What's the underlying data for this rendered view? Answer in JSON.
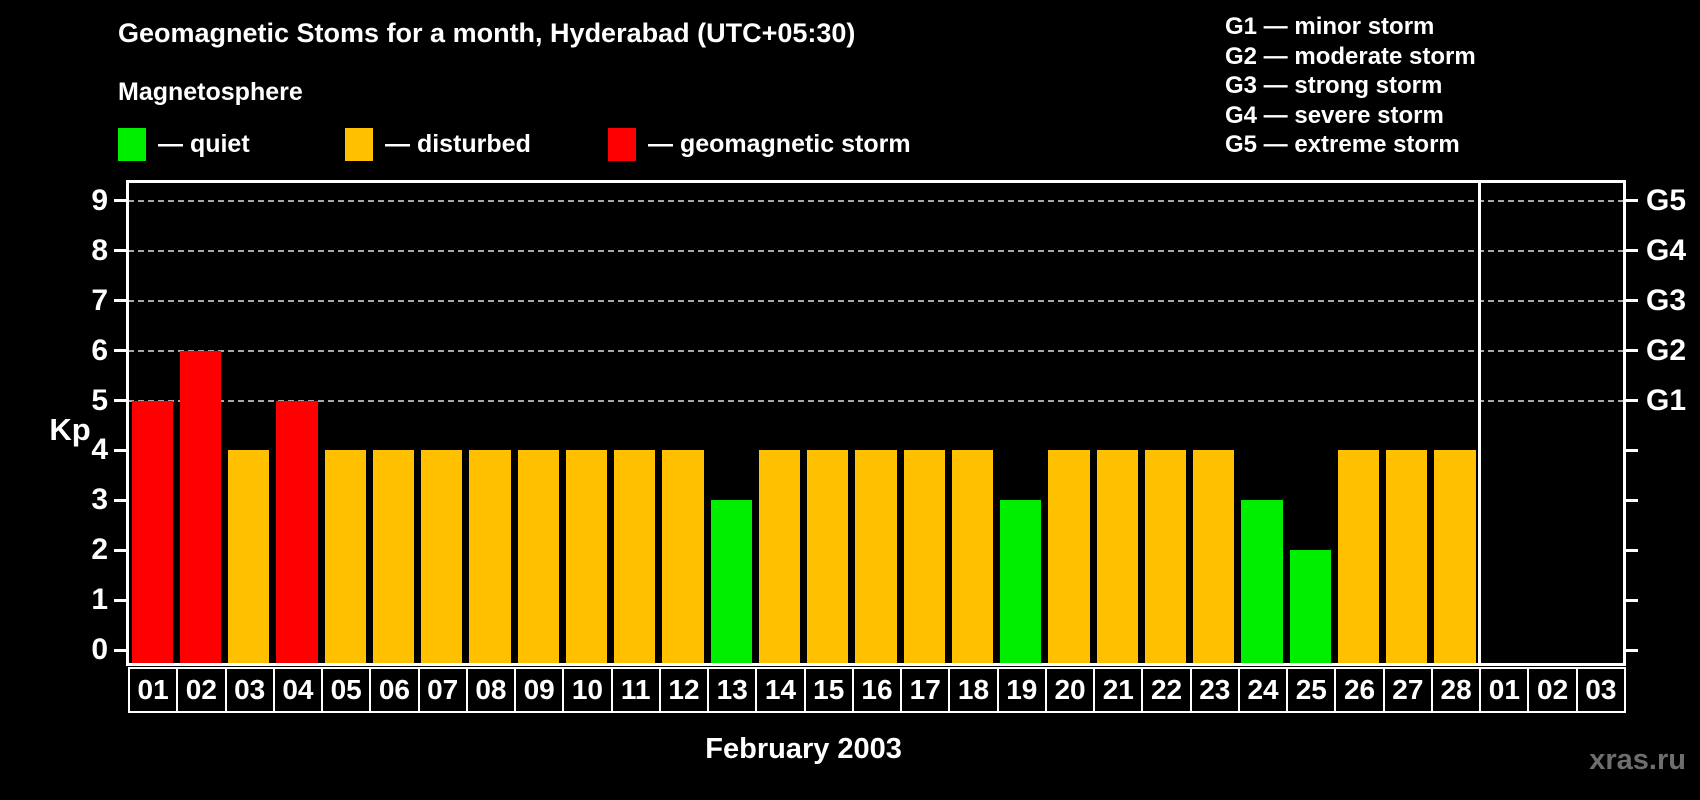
{
  "title": "Geomagnetic Stoms for a month, Hyderabad (UTC+05:30)",
  "magnetosphere": {
    "heading": "Magnetosphere",
    "items": [
      {
        "name": "quiet",
        "color": "#00ee00",
        "label": "— quiet"
      },
      {
        "name": "disturbed",
        "color": "#ffc000",
        "label": "— disturbed"
      },
      {
        "name": "storm",
        "color": "#ff0000",
        "label": "— geomagnetic storm"
      }
    ]
  },
  "g_legend": {
    "items": [
      {
        "label": "G1 — minor storm"
      },
      {
        "label": "G2 — moderate storm"
      },
      {
        "label": "G3 — strong storm"
      },
      {
        "label": "G4 — severe storm"
      },
      {
        "label": "G5 — extreme storm"
      }
    ]
  },
  "axis": {
    "kp_label": "Kp",
    "y_ticks": [
      "0",
      "1",
      "2",
      "3",
      "4",
      "5",
      "6",
      "7",
      "8",
      "9"
    ],
    "right_labels": [
      {
        "label": "G1",
        "value": 5
      },
      {
        "label": "G2",
        "value": 6
      },
      {
        "label": "G3",
        "value": 7
      },
      {
        "label": "G4",
        "value": 8
      },
      {
        "label": "G5",
        "value": 9
      }
    ],
    "xlabel": "February 2003"
  },
  "watermark": "xras.ru",
  "chart_data": {
    "type": "bar",
    "title": "Geomagnetic Stoms for a month, Hyderabad (UTC+05:30)",
    "xlabel": "February 2003",
    "ylabel": "Kp",
    "ylim": [
      0,
      9.4
    ],
    "grid": "horizontal dashed lines at Kp 5-9 (G1-G5 levels) only",
    "legend_position": "top",
    "categories": [
      "01",
      "02",
      "03",
      "04",
      "05",
      "06",
      "07",
      "08",
      "09",
      "10",
      "11",
      "12",
      "13",
      "14",
      "15",
      "16",
      "17",
      "18",
      "19",
      "20",
      "21",
      "22",
      "23",
      "24",
      "25",
      "26",
      "27",
      "28",
      "01",
      "02",
      "03"
    ],
    "month_split_index": 28,
    "values": [
      5,
      6,
      4,
      5,
      4,
      4,
      4,
      4,
      4,
      4,
      4,
      4,
      3,
      4,
      4,
      4,
      4,
      4,
      3,
      4,
      4,
      4,
      4,
      3,
      2,
      4,
      4,
      4,
      null,
      null,
      null
    ],
    "color_rule": {
      "quiet": "Kp <= 3",
      "disturbed": "Kp = 4",
      "storm": "Kp >= 5"
    },
    "colors": {
      "quiet": "#00ee00",
      "disturbed": "#ffc000",
      "storm": "#ff0000"
    }
  }
}
